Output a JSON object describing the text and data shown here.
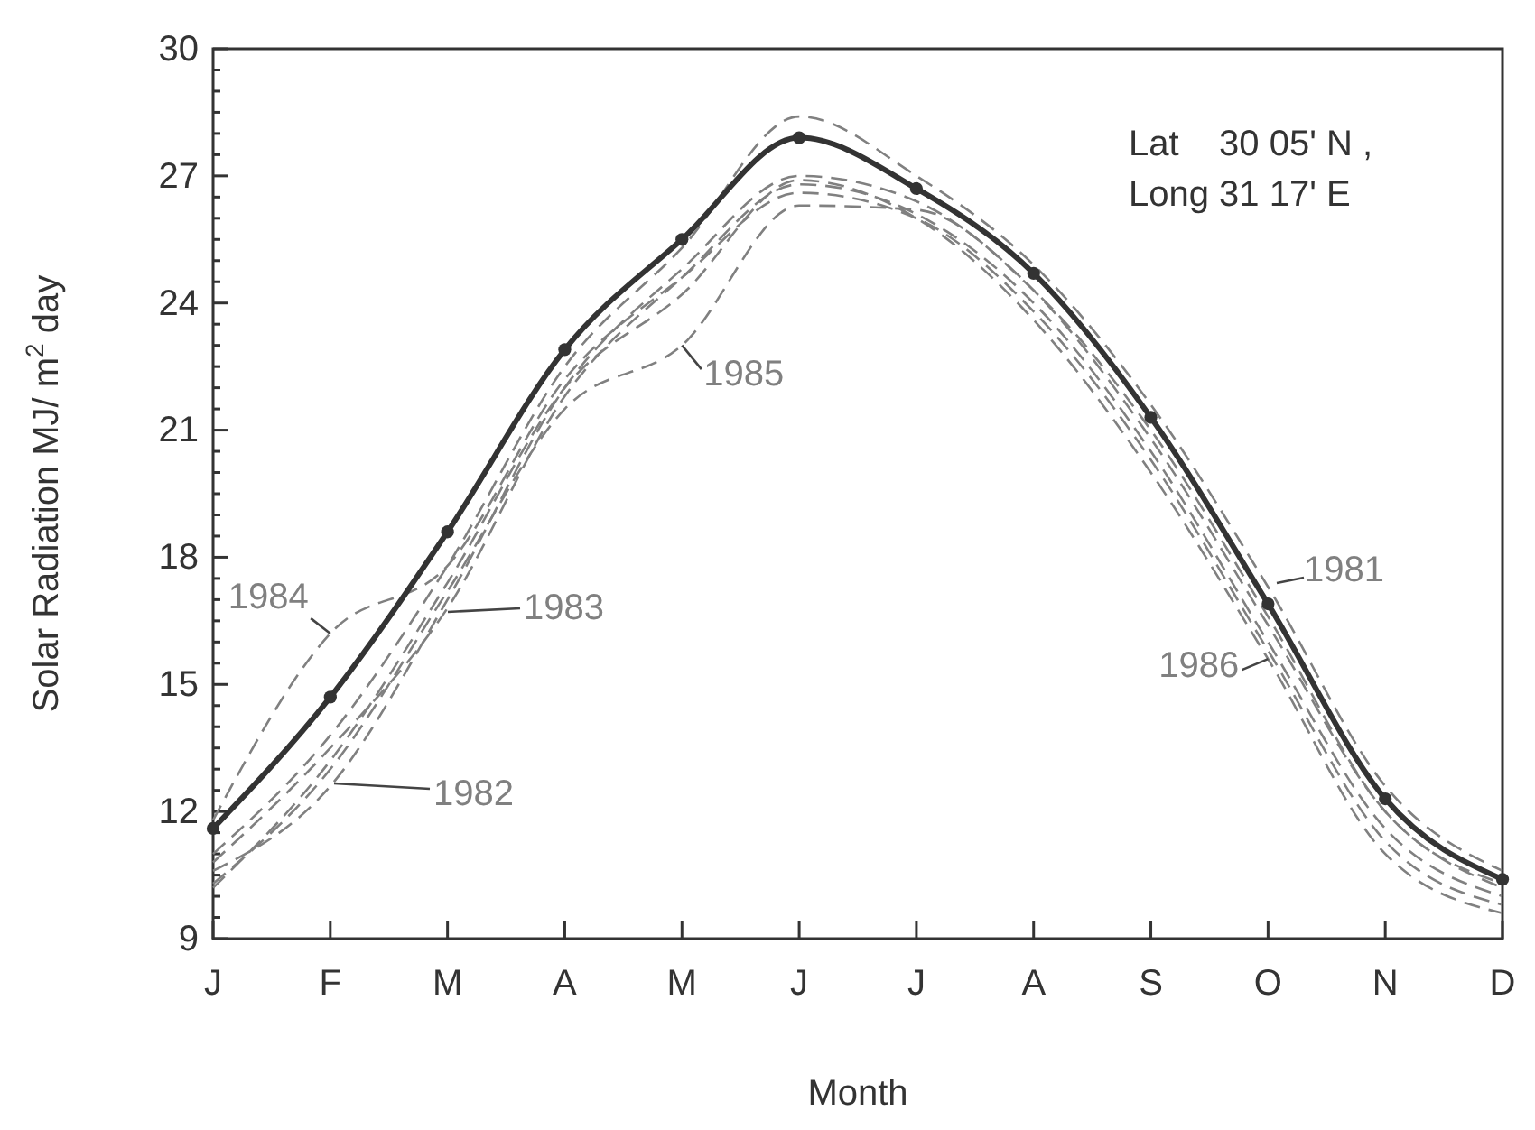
{
  "chart_data": {
    "type": "line",
    "xlabel": "Month",
    "ylabel": "Solar Radiation MJ/ m$^{2}$ day",
    "categories": [
      "J",
      "F",
      "M",
      "A",
      "M",
      "J",
      "J",
      "A",
      "S",
      "O",
      "N",
      "D"
    ],
    "ylim": [
      9,
      30
    ],
    "yticks": [
      9,
      {
        "value": 9.5,
        "label": null
      },
      {
        "value": 10,
        "label": null
      },
      {
        "value": 10.5,
        "label": null
      },
      {
        "value": 11,
        "label": null
      },
      {
        "value": 11.5,
        "label": null
      },
      12,
      {
        "value": 12.5,
        "label": null
      },
      {
        "value": 13,
        "label": null
      },
      {
        "value": 13.5,
        "label": null
      },
      {
        "value": 14,
        "label": null
      },
      {
        "value": 14.5,
        "label": null
      },
      15,
      {
        "value": 15.5,
        "label": null
      },
      {
        "value": 16,
        "label": null
      },
      {
        "value": 16.5,
        "label": null
      },
      {
        "value": 17,
        "label": null
      },
      {
        "value": 17.5,
        "label": null
      },
      18,
      {
        "value": 18.5,
        "label": null
      },
      {
        "value": 19,
        "label": null
      },
      {
        "value": 19.5,
        "label": null
      },
      {
        "value": 20,
        "label": null
      },
      {
        "value": 20.5,
        "label": null
      },
      21,
      {
        "value": 21.5,
        "label": null
      },
      {
        "value": 22,
        "label": null
      },
      {
        "value": 22.5,
        "label": null
      },
      {
        "value": 23,
        "label": null
      },
      {
        "value": 23.5,
        "label": null
      },
      24,
      {
        "value": 24.5,
        "label": null
      },
      {
        "value": 25,
        "label": null
      },
      {
        "value": 25.5,
        "label": null
      },
      {
        "value": 26,
        "label": null
      },
      {
        "value": 26.5,
        "label": null
      },
      27,
      {
        "value": 27.5,
        "label": null
      },
      {
        "value": 28,
        "label": null
      },
      {
        "value": 28.5,
        "label": null
      },
      {
        "value": 29,
        "label": null
      },
      {
        "value": 29.5,
        "label": null
      },
      30
    ],
    "grid": false,
    "annotations": [
      "Lat    30 05' N ,",
      "Long 31 17' E"
    ],
    "series": [
      {
        "color": "#333333",
        "marker": "circle",
        "line_style": "solid",
        "values": [
          11.6,
          14.7,
          18.6,
          22.9,
          25.5,
          27.9,
          26.7,
          24.7,
          21.3,
          16.9,
          12.3,
          10.4
        ]
      },
      {
        "name": "1981",
        "color": "#808080",
        "marker": "none",
        "line_style": "dashed",
        "values": [
          11.0,
          13.8,
          17.8,
          22.5,
          25.3,
          28.4,
          27.0,
          24.9,
          21.6,
          17.3,
          12.6,
          10.6
        ]
      },
      {
        "name": "1982",
        "color": "#808080",
        "marker": "none",
        "line_style": "dashed",
        "values": [
          10.6,
          12.6,
          17.0,
          22.0,
          24.8,
          27.0,
          26.4,
          24.3,
          20.8,
          16.4,
          12.0,
          10.2
        ]
      },
      {
        "name": "1983",
        "color": "#808080",
        "marker": "none",
        "line_style": "dashed",
        "values": [
          10.8,
          13.5,
          16.8,
          21.8,
          24.6,
          26.8,
          26.1,
          24.0,
          20.5,
          16.0,
          11.6,
          10.0
        ]
      },
      {
        "name": "1984",
        "color": "#808080",
        "marker": "none",
        "line_style": "dashed",
        "values": [
          11.8,
          16.2,
          17.8,
          22.2,
          24.6,
          26.6,
          26.0,
          23.8,
          20.3,
          15.8,
          11.3,
          9.8
        ]
      },
      {
        "name": "1985",
        "color": "#808080",
        "marker": "none",
        "line_style": "dashed",
        "values": [
          10.3,
          13.0,
          17.2,
          21.5,
          23.0,
          26.3,
          26.2,
          24.3,
          21.0,
          16.6,
          12.0,
          10.3
        ]
      },
      {
        "name": "1986",
        "color": "#808080",
        "marker": "none",
        "line_style": "dashed",
        "values": [
          10.2,
          13.2,
          17.4,
          22.0,
          24.2,
          26.9,
          26.0,
          23.6,
          20.0,
          15.6,
          11.0,
          9.6
        ]
      }
    ]
  }
}
